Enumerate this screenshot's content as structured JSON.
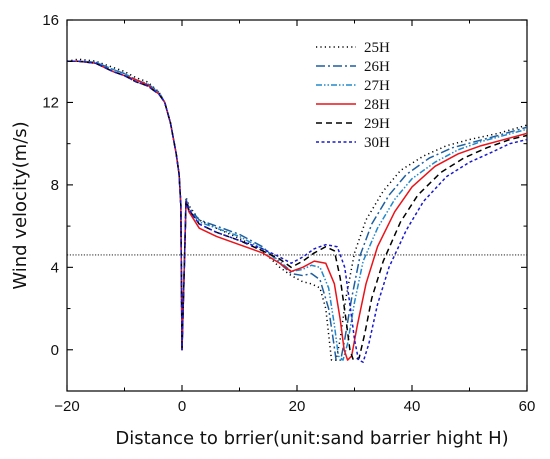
{
  "chart_data": {
    "type": "line",
    "title": "",
    "xlabel": "Distance to brrier(unit:sand barrier hight H)",
    "ylabel": "Wind velocity(m/s)",
    "xlim": [
      -20,
      60
    ],
    "ylim": [
      -2,
      16
    ],
    "xticks": [
      -20,
      0,
      20,
      40,
      60
    ],
    "yticks": [
      0,
      4,
      8,
      12,
      16
    ],
    "grid": false,
    "legend_position": "top-center",
    "reference_line": {
      "y": 4.6,
      "style": "dotted",
      "color": "#000000"
    },
    "series": [
      {
        "name": "25H",
        "color": "#000000",
        "dash": "1.2,3.2",
        "points": [
          [
            -20,
            14.0
          ],
          [
            -18,
            14.1
          ],
          [
            -15,
            14.0
          ],
          [
            -12,
            13.7
          ],
          [
            -10,
            13.5
          ],
          [
            -8,
            13.2
          ],
          [
            -6,
            13.0
          ],
          [
            -4,
            12.5
          ],
          [
            -3,
            12.0
          ],
          [
            -2,
            11.0
          ],
          [
            -1,
            9.5
          ],
          [
            -0.5,
            8.5
          ],
          [
            -0.2,
            7.0
          ],
          [
            0,
            0
          ],
          [
            0.4,
            4.0
          ],
          [
            0.7,
            7.4
          ],
          [
            1.2,
            7.0
          ],
          [
            3,
            6.3
          ],
          [
            6,
            5.9
          ],
          [
            10,
            5.4
          ],
          [
            14,
            4.8
          ],
          [
            17,
            4.0
          ],
          [
            19,
            3.6
          ],
          [
            21,
            3.3
          ],
          [
            22.5,
            3.2
          ],
          [
            24,
            3.0
          ],
          [
            25,
            2.0
          ],
          [
            25.6,
            0.5
          ],
          [
            26,
            -0.5
          ],
          [
            26.8,
            -0.5
          ],
          [
            27.5,
            0.5
          ],
          [
            28.5,
            2.5
          ],
          [
            30,
            4.7
          ],
          [
            32,
            6.3
          ],
          [
            35,
            7.7
          ],
          [
            38,
            8.7
          ],
          [
            42,
            9.4
          ],
          [
            46,
            9.9
          ],
          [
            50,
            10.2
          ],
          [
            55,
            10.5
          ],
          [
            60,
            10.9
          ]
        ]
      },
      {
        "name": "26H",
        "color": "#1f5f9f",
        "dash": "9,3,2,3",
        "points": [
          [
            -20,
            14.0
          ],
          [
            -18,
            14.0
          ],
          [
            -15,
            13.95
          ],
          [
            -12,
            13.6
          ],
          [
            -10,
            13.4
          ],
          [
            -8,
            13.1
          ],
          [
            -6,
            12.9
          ],
          [
            -4,
            12.5
          ],
          [
            -3,
            12.0
          ],
          [
            -2,
            11.0
          ],
          [
            -1,
            9.5
          ],
          [
            -0.5,
            8.5
          ],
          [
            -0.2,
            7.0
          ],
          [
            0,
            0
          ],
          [
            0.4,
            4.0
          ],
          [
            0.7,
            7.3
          ],
          [
            1.2,
            6.9
          ],
          [
            3,
            6.3
          ],
          [
            6,
            6.0
          ],
          [
            10,
            5.6
          ],
          [
            14,
            5.0
          ],
          [
            17,
            4.2
          ],
          [
            19,
            3.7
          ],
          [
            21,
            3.6
          ],
          [
            22.5,
            3.7
          ],
          [
            24,
            3.4
          ],
          [
            25.5,
            2.0
          ],
          [
            26.3,
            0.5
          ],
          [
            26.8,
            -0.5
          ],
          [
            27.6,
            -0.5
          ],
          [
            28.3,
            0.5
          ],
          [
            29.5,
            2.5
          ],
          [
            31,
            4.6
          ],
          [
            33,
            6.1
          ],
          [
            36,
            7.5
          ],
          [
            39,
            8.5
          ],
          [
            43,
            9.3
          ],
          [
            47,
            9.8
          ],
          [
            51,
            10.1
          ],
          [
            55,
            10.4
          ],
          [
            60,
            10.8
          ]
        ]
      },
      {
        "name": "27H",
        "color": "#2288cc",
        "dash": "6,2,1.5,2,1.5,2",
        "points": [
          [
            -20,
            14.0
          ],
          [
            -18,
            14.0
          ],
          [
            -15,
            13.95
          ],
          [
            -12,
            13.6
          ],
          [
            -10,
            13.4
          ],
          [
            -8,
            13.1
          ],
          [
            -6,
            12.9
          ],
          [
            -4,
            12.45
          ],
          [
            -3,
            12.0
          ],
          [
            -2,
            11.0
          ],
          [
            -1,
            9.5
          ],
          [
            -0.5,
            8.5
          ],
          [
            -0.2,
            7.0
          ],
          [
            0,
            0
          ],
          [
            0.4,
            4.0
          ],
          [
            0.7,
            7.25
          ],
          [
            1.2,
            6.8
          ],
          [
            3,
            6.2
          ],
          [
            6,
            5.9
          ],
          [
            10,
            5.5
          ],
          [
            14,
            4.9
          ],
          [
            17,
            4.3
          ],
          [
            19,
            3.8
          ],
          [
            21,
            3.9
          ],
          [
            22.5,
            4.1
          ],
          [
            24,
            4.0
          ],
          [
            25.5,
            3.0
          ],
          [
            26.5,
            1.2
          ],
          [
            27.2,
            -0.3
          ],
          [
            28,
            -0.5
          ],
          [
            28.8,
            0.3
          ],
          [
            30,
            2.3
          ],
          [
            31.5,
            4.3
          ],
          [
            34,
            5.9
          ],
          [
            37,
            7.3
          ],
          [
            40,
            8.3
          ],
          [
            44,
            9.1
          ],
          [
            48,
            9.7
          ],
          [
            52,
            10.1
          ],
          [
            56,
            10.4
          ],
          [
            60,
            10.7
          ]
        ]
      },
      {
        "name": "28H",
        "color": "#e8141a",
        "dash": "",
        "points": [
          [
            -20,
            14.0
          ],
          [
            -18,
            14.0
          ],
          [
            -15,
            13.9
          ],
          [
            -12,
            13.5
          ],
          [
            -10,
            13.3
          ],
          [
            -8,
            13.1
          ],
          [
            -6,
            12.85
          ],
          [
            -4,
            12.4
          ],
          [
            -3,
            12.0
          ],
          [
            -2,
            11.0
          ],
          [
            -1,
            9.5
          ],
          [
            -0.5,
            8.5
          ],
          [
            -0.2,
            7.0
          ],
          [
            0,
            0
          ],
          [
            0.4,
            4.0
          ],
          [
            0.7,
            7.2
          ],
          [
            1.2,
            6.7
          ],
          [
            3,
            5.9
          ],
          [
            6,
            5.5
          ],
          [
            10,
            5.1
          ],
          [
            14,
            4.7
          ],
          [
            17,
            4.2
          ],
          [
            19,
            3.8
          ],
          [
            21,
            4.0
          ],
          [
            23,
            4.3
          ],
          [
            25,
            4.2
          ],
          [
            26.5,
            3.2
          ],
          [
            27.5,
            1.5
          ],
          [
            28.2,
            0.0
          ],
          [
            28.8,
            -0.5
          ],
          [
            29.5,
            -0.3
          ],
          [
            30.5,
            1.2
          ],
          [
            32,
            3.2
          ],
          [
            34,
            5.0
          ],
          [
            37,
            6.7
          ],
          [
            40,
            7.9
          ],
          [
            44,
            8.9
          ],
          [
            48,
            9.5
          ],
          [
            52,
            9.9
          ],
          [
            56,
            10.2
          ],
          [
            60,
            10.5
          ]
        ]
      },
      {
        "name": "29H",
        "color": "#000000",
        "dash": "6,4",
        "points": [
          [
            -20,
            14.0
          ],
          [
            -18,
            14.0
          ],
          [
            -15,
            13.9
          ],
          [
            -12,
            13.5
          ],
          [
            -10,
            13.3
          ],
          [
            -8,
            13.0
          ],
          [
            -6,
            12.8
          ],
          [
            -4,
            12.4
          ],
          [
            -3,
            12.0
          ],
          [
            -2,
            11.0
          ],
          [
            -1,
            9.5
          ],
          [
            -0.5,
            8.5
          ],
          [
            -0.2,
            7.0
          ],
          [
            0,
            0
          ],
          [
            0.4,
            4.0
          ],
          [
            0.7,
            7.2
          ],
          [
            1.2,
            6.8
          ],
          [
            3,
            6.1
          ],
          [
            6,
            5.7
          ],
          [
            10,
            5.3
          ],
          [
            14,
            4.8
          ],
          [
            17,
            4.4
          ],
          [
            19,
            4.0
          ],
          [
            21,
            4.3
          ],
          [
            23,
            4.7
          ],
          [
            25,
            5.0
          ],
          [
            26.5,
            4.8
          ],
          [
            27.5,
            3.5
          ],
          [
            28.5,
            1.5
          ],
          [
            29.2,
            0.0
          ],
          [
            29.8,
            -0.5
          ],
          [
            30.8,
            -0.4
          ],
          [
            31.8,
            0.8
          ],
          [
            33,
            2.5
          ],
          [
            35,
            4.3
          ],
          [
            38,
            6.2
          ],
          [
            41,
            7.5
          ],
          [
            45,
            8.6
          ],
          [
            49,
            9.3
          ],
          [
            53,
            9.8
          ],
          [
            57,
            10.2
          ],
          [
            60,
            10.4
          ]
        ]
      },
      {
        "name": "30H",
        "color": "#1a1acc",
        "dash": "3,2.5",
        "points": [
          [
            -20,
            14.0
          ],
          [
            -18,
            14.0
          ],
          [
            -15,
            13.9
          ],
          [
            -12,
            13.5
          ],
          [
            -10,
            13.3
          ],
          [
            -8,
            13.0
          ],
          [
            -6,
            12.8
          ],
          [
            -4,
            12.4
          ],
          [
            -3,
            12.0
          ],
          [
            -2,
            11.0
          ],
          [
            -1,
            9.5
          ],
          [
            -0.5,
            8.5
          ],
          [
            -0.2,
            7.0
          ],
          [
            0,
            0
          ],
          [
            0.4,
            4.0
          ],
          [
            0.7,
            7.2
          ],
          [
            1.2,
            6.8
          ],
          [
            3,
            6.1
          ],
          [
            6,
            5.7
          ],
          [
            10,
            5.3
          ],
          [
            14,
            4.9
          ],
          [
            17,
            4.5
          ],
          [
            19,
            4.2
          ],
          [
            21,
            4.5
          ],
          [
            23,
            4.9
          ],
          [
            25,
            5.1
          ],
          [
            27,
            5.0
          ],
          [
            28.3,
            4.0
          ],
          [
            29.3,
            2.0
          ],
          [
            30,
            0.5
          ],
          [
            30.7,
            -0.5
          ],
          [
            31.5,
            -0.6
          ],
          [
            32.5,
            0.3
          ],
          [
            34,
            2.2
          ],
          [
            36,
            4.0
          ],
          [
            39,
            5.8
          ],
          [
            42,
            7.2
          ],
          [
            46,
            8.4
          ],
          [
            50,
            9.1
          ],
          [
            54,
            9.6
          ],
          [
            57,
            10.0
          ],
          [
            60,
            10.2
          ]
        ]
      }
    ]
  }
}
